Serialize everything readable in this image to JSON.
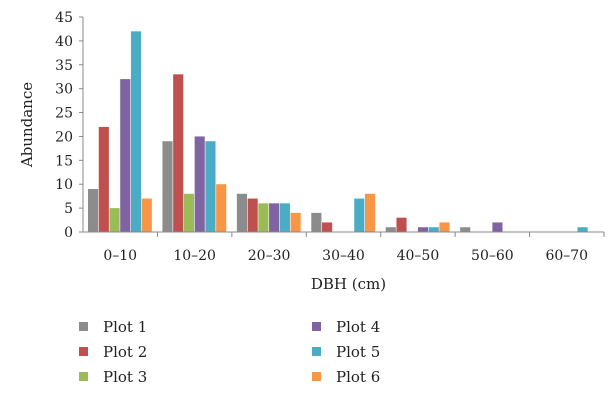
{
  "chart_data": {
    "type": "bar",
    "title": "",
    "xlabel": "DBH (cm)",
    "ylabel": "Abundance",
    "ylim": [
      0,
      45
    ],
    "yticks": [
      0,
      5,
      10,
      15,
      20,
      25,
      30,
      35,
      40,
      45
    ],
    "grid": false,
    "legend_position": "bottom",
    "categories": [
      "0–10",
      "10–20",
      "20–30",
      "30–40",
      "40–50",
      "50–60",
      "60–70"
    ],
    "series": [
      {
        "name": "Plot 1",
        "color": "#8c8c8c",
        "values": [
          9,
          19,
          8,
          4,
          1,
          1,
          0
        ]
      },
      {
        "name": "Plot 2",
        "color": "#c0504d",
        "values": [
          22,
          33,
          7,
          2,
          3,
          0,
          0
        ]
      },
      {
        "name": "Plot 3",
        "color": "#9bbb59",
        "values": [
          5,
          8,
          6,
          0,
          0,
          0,
          0
        ]
      },
      {
        "name": "Plot 4",
        "color": "#8064a2",
        "values": [
          32,
          20,
          6,
          0,
          1,
          2,
          0
        ]
      },
      {
        "name": "Plot 5",
        "color": "#4bacc6",
        "values": [
          42,
          19,
          6,
          7,
          1,
          0,
          1
        ]
      },
      {
        "name": "Plot 6",
        "color": "#f79646",
        "values": [
          7,
          10,
          4,
          8,
          2,
          0,
          0
        ]
      }
    ]
  }
}
